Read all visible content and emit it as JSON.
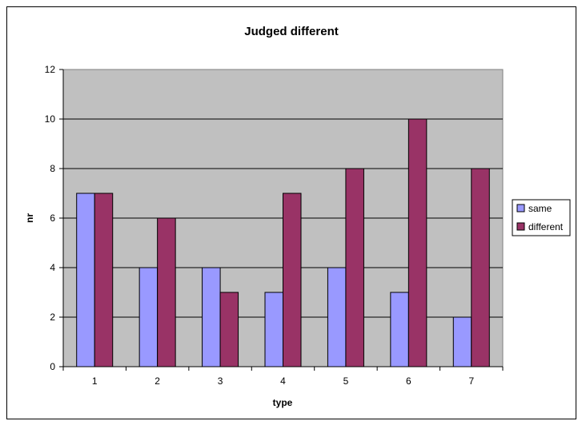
{
  "chart_data": {
    "type": "bar",
    "title": "Judged different",
    "xlabel": "type",
    "ylabel": "nr",
    "categories": [
      "1",
      "2",
      "3",
      "4",
      "5",
      "6",
      "7"
    ],
    "series": [
      {
        "name": "same",
        "values": [
          7,
          4,
          4,
          3,
          4,
          3,
          2
        ],
        "color": "#9999ff"
      },
      {
        "name": "different",
        "values": [
          7,
          6,
          3,
          7,
          8,
          10,
          8
        ],
        "color": "#993366"
      }
    ],
    "ylim": [
      0,
      12
    ],
    "yticks": [
      0,
      2,
      4,
      6,
      8,
      10,
      12
    ],
    "grid": true,
    "plot_background": "#c0c0c0",
    "legend_position": "right"
  }
}
